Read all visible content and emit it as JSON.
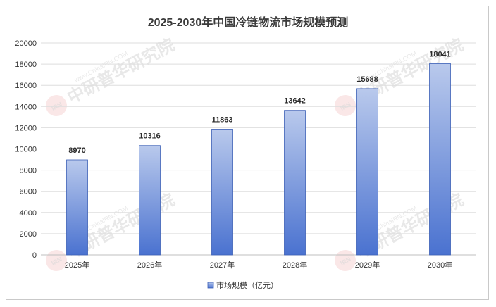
{
  "chart_data": {
    "type": "bar",
    "title": "2025-2030年中国冷链物流市场规模预测",
    "categories": [
      "2025年",
      "2026年",
      "2027年",
      "2028年",
      "2029年",
      "2030年"
    ],
    "series": [
      {
        "name": "市场规模（亿元）",
        "values": [
          8970,
          10316,
          11863,
          13642,
          15688,
          18041
        ]
      }
    ],
    "data_labels": [
      "8970",
      "10316",
      "11863",
      "13642",
      "15688",
      "18041"
    ],
    "y_ticks": [
      "0",
      "2000",
      "4000",
      "6000",
      "8000",
      "10000",
      "12000",
      "14000",
      "16000",
      "18000",
      "20000"
    ],
    "ylim": [
      0,
      20000
    ],
    "grid": true,
    "legend_position": "bottom",
    "colors": {
      "bar_top": "#b9c9ec",
      "bar_bottom": "#4a72d0",
      "bar_border": "#3b5fb6",
      "grid": "#dedede",
      "axis": "#bfbfbf"
    }
  },
  "watermark": {
    "url_text": "www.ChinaIRN.COM",
    "name_text": "中研普华研究院",
    "logo_text": "IRN"
  }
}
